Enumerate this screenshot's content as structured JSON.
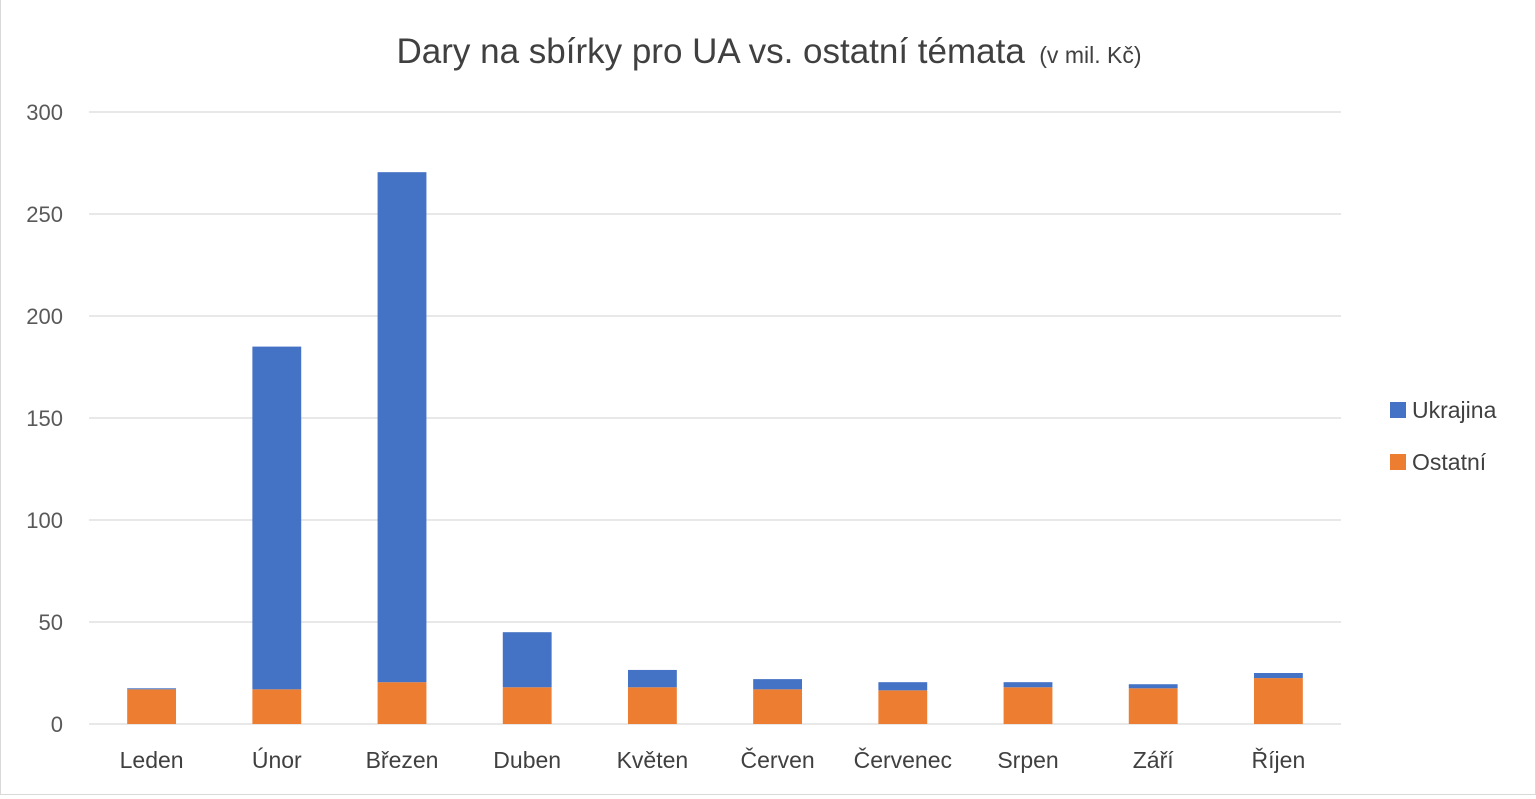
{
  "chart_data": {
    "type": "bar",
    "stacked": true,
    "title": "Dary na sbírky pro UA vs. ostatní témata",
    "subtitle": "(v mil. Kč)",
    "xlabel": "",
    "ylabel": "",
    "ylim": [
      0,
      300
    ],
    "yticks": [
      0,
      50,
      100,
      150,
      200,
      250,
      300
    ],
    "grid": true,
    "legend_position": "right",
    "categories": [
      "Leden",
      "Únor",
      "Březen",
      "Duben",
      "Květen",
      "Červen",
      "Červenec",
      "Srpen",
      "Září",
      "Říjen"
    ],
    "series": [
      {
        "name": "Ostatní",
        "color": "#ED7D31",
        "values": [
          17,
          17,
          20.5,
          18,
          18,
          17,
          16.5,
          18,
          17.5,
          22.5
        ]
      },
      {
        "name": "Ukrajina",
        "color": "#4472C4",
        "values": [
          0.5,
          168,
          250,
          27,
          8.5,
          5,
          4,
          2.5,
          2,
          2.5
        ]
      }
    ],
    "legend_order": [
      "Ukrajina",
      "Ostatní"
    ]
  }
}
